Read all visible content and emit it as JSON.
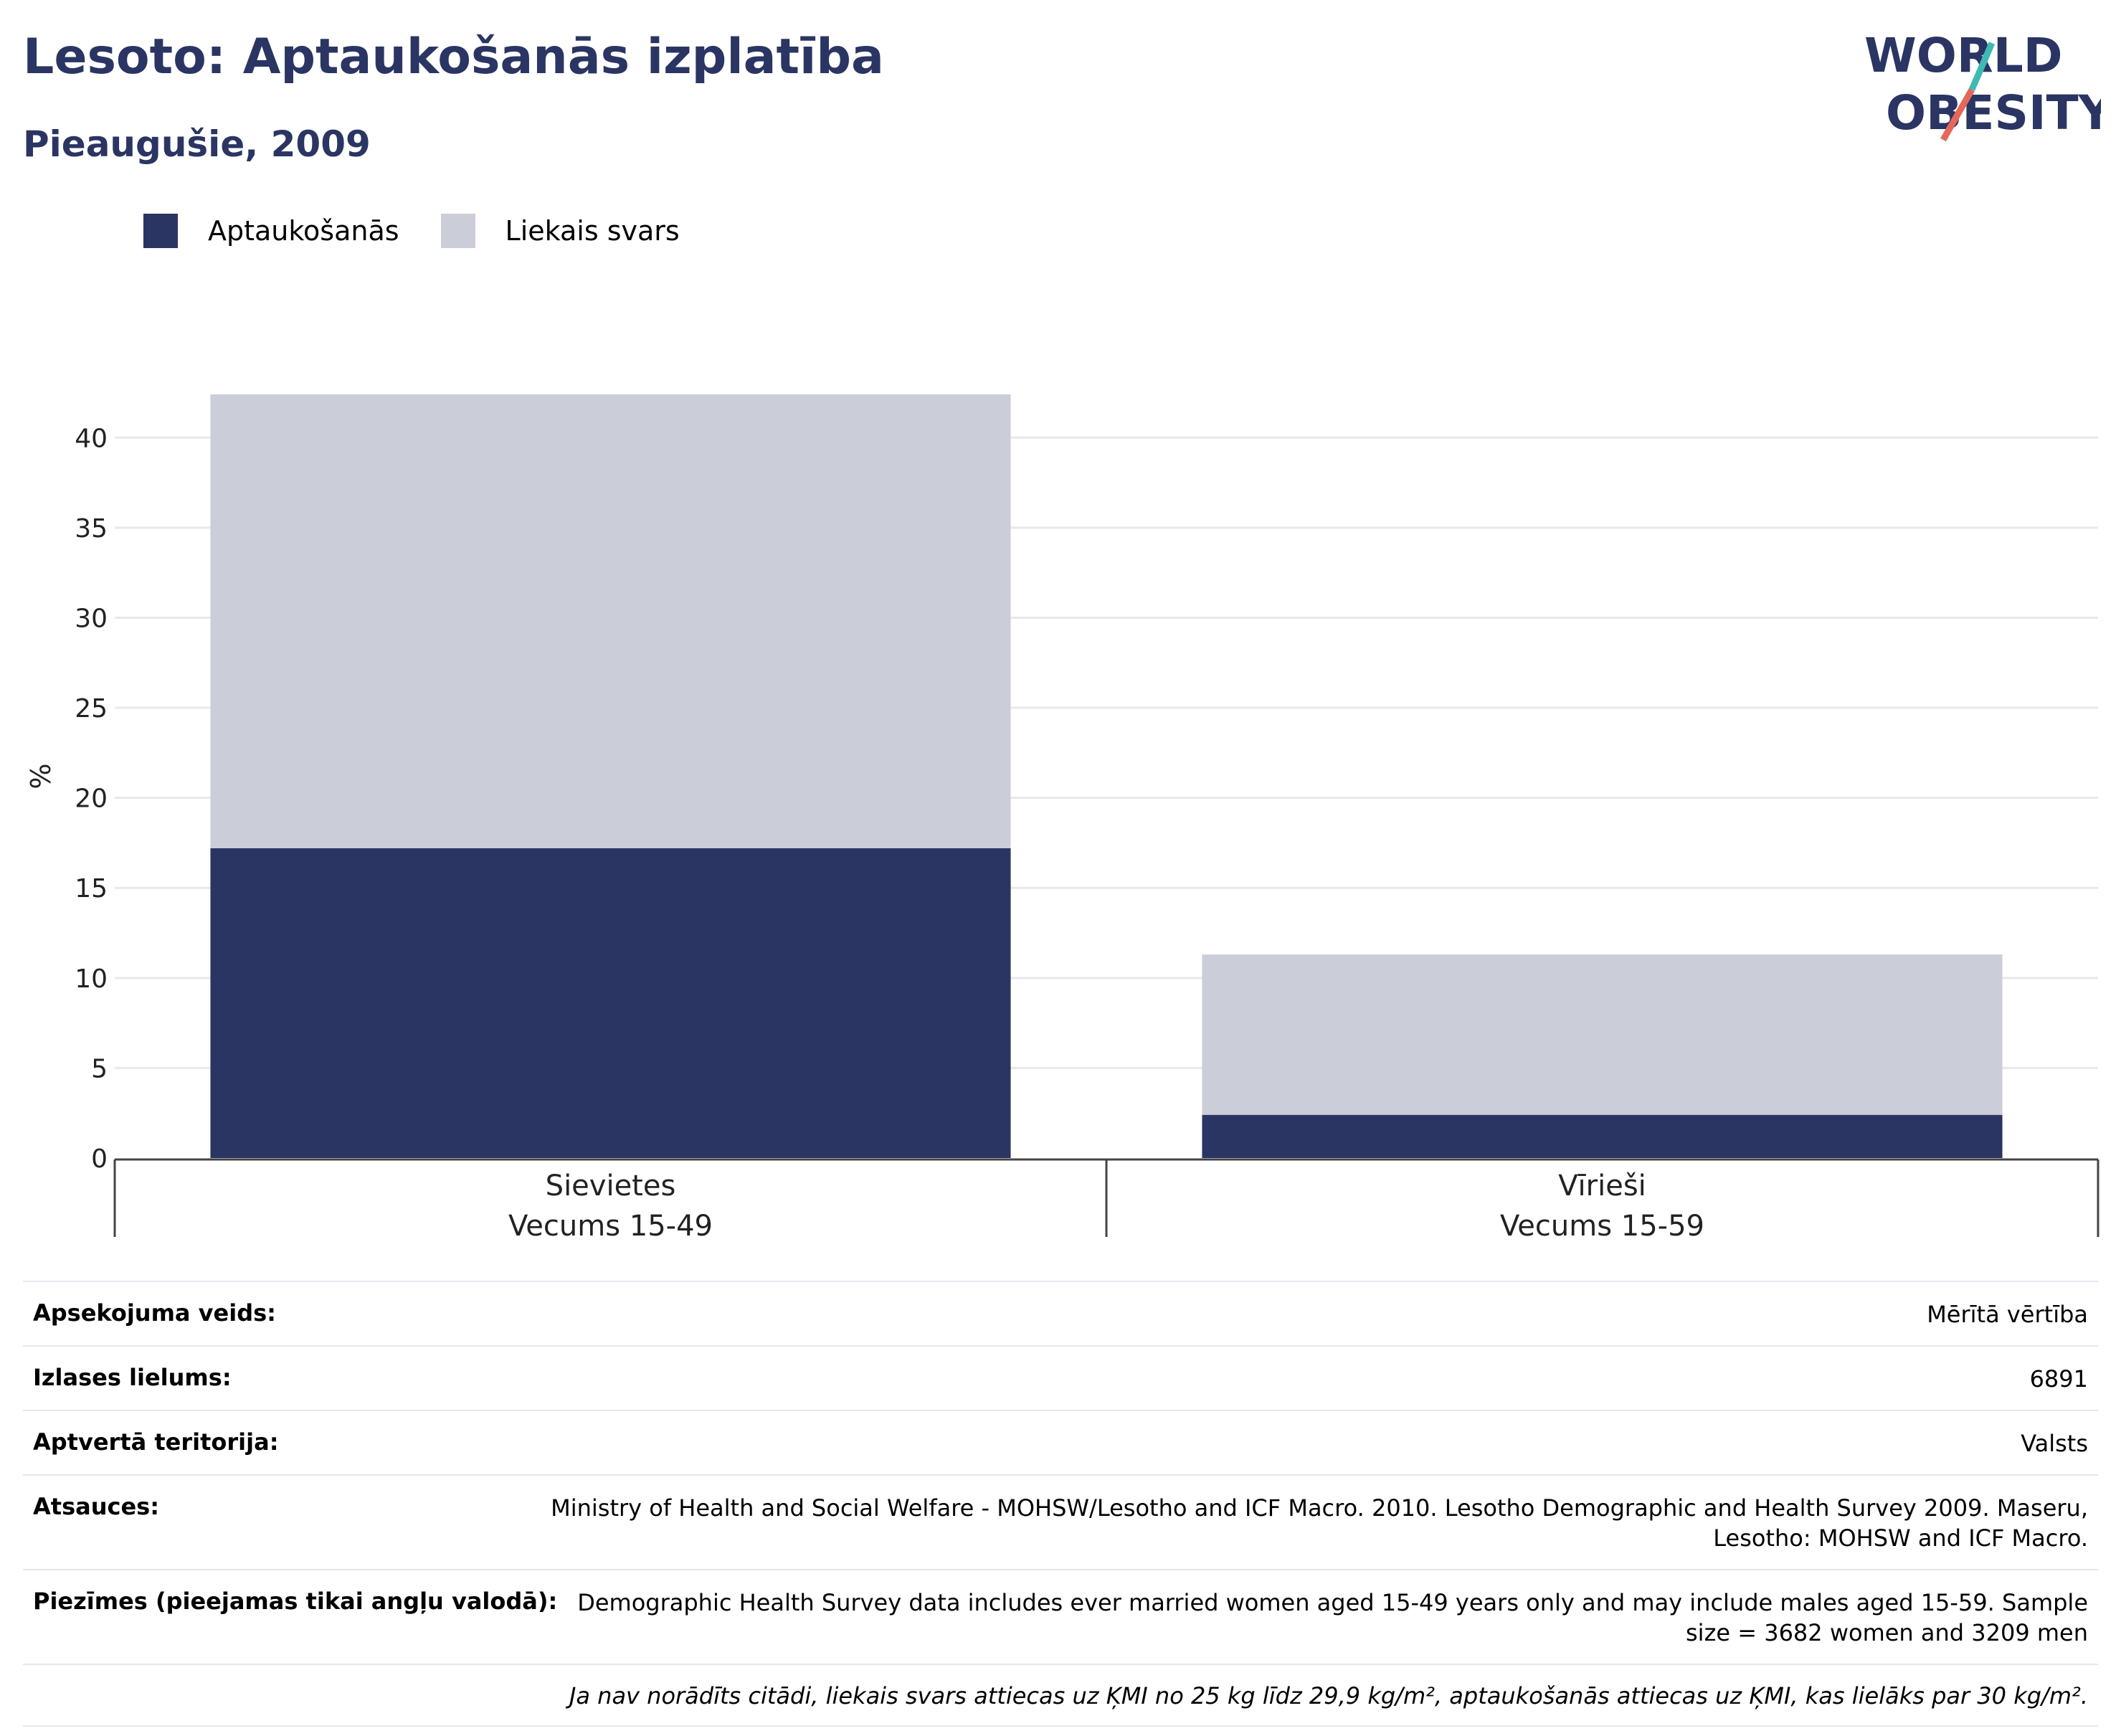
{
  "title": "Lesoto: Aptaukošanās izplatība",
  "subtitle": "Pieaugušie, 2009",
  "logo": {
    "line1": "WORLD",
    "line2": "OBESITY"
  },
  "colors": {
    "obesity": "#2a3563",
    "overweight": "#cbcdd9",
    "title": "#2a3563",
    "logo_teal": "#3fb9b3",
    "logo_coral": "#e4685a"
  },
  "legend": [
    {
      "label": "Aptaukošanās",
      "color": "#2a3563"
    },
    {
      "label": "Liekais svars",
      "color": "#cbcdd9"
    }
  ],
  "chart_data": {
    "type": "bar",
    "stacked": true,
    "categories": [
      [
        "Sievietes",
        "Vecums 15-49"
      ],
      [
        "Vīrieši",
        "Vecums 15-59"
      ]
    ],
    "series": [
      {
        "name": "Aptaukošanās",
        "values": [
          17.2,
          2.4
        ]
      },
      {
        "name": "Liekais svars",
        "values": [
          25.2,
          8.9
        ]
      }
    ],
    "ylabel": "%",
    "ylim": [
      0,
      42.4
    ],
    "yticks": [
      0,
      5,
      10,
      15,
      20,
      25,
      30,
      35,
      40
    ],
    "grid": true,
    "legend_position": "top-left"
  },
  "meta": [
    {
      "key": "Apsekojuma veids:",
      "value": "Mērītā vērtība"
    },
    {
      "key": "Izlases lielums:",
      "value": "6891"
    },
    {
      "key": "Aptvertā teritorija:",
      "value": "Valsts"
    },
    {
      "key": "Atsauces:",
      "value": "Ministry of Health and Social Welfare - MOHSW/Lesotho and ICF Macro. 2010. Lesotho Demographic and Health Survey 2009. Maseru, Lesotho: MOHSW and ICF Macro."
    },
    {
      "key": "Piezīmes (pieejamas tikai angļu valodā):",
      "value": "Demographic Health Survey data includes ever married women aged 15-49 years only and may include males aged 15-59. Sample size = 3682 women and 3209 men"
    }
  ],
  "footnote": "Ja nav norādīts citādi, liekais svars attiecas uz ĶMI no 25 kg līdz 29,9 kg/m², aptaukošanās attiecas uz ĶMI, kas lielāks par 30 kg/m²."
}
